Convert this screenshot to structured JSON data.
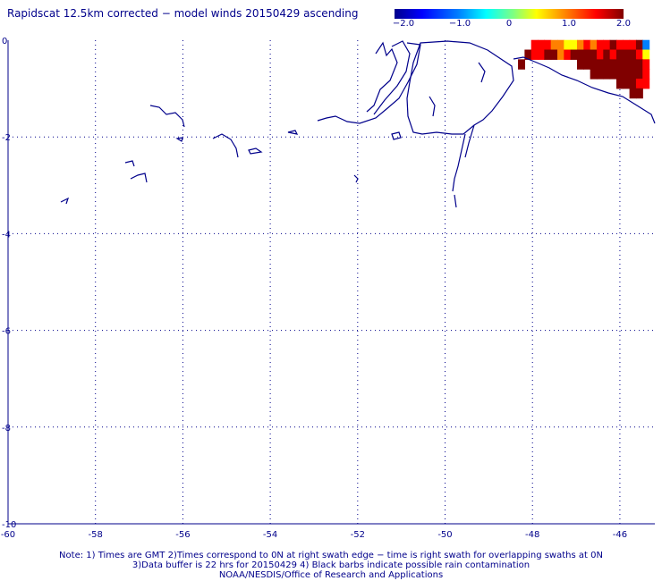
{
  "title": "Rapidscat 12.5km corrected − model winds 20150429 ascending",
  "colorbar": {
    "labels": [
      "−2.0",
      "−1.0",
      "0",
      "1.0",
      "2.0"
    ],
    "values": [
      -2.0,
      -1.0,
      0,
      1.0,
      2.0
    ],
    "colors": [
      "#0000a0",
      "#0000ff",
      "#0080ff",
      "#00ffff",
      "#80ff80",
      "#ffff00",
      "#ff8000",
      "#ff0000",
      "#800000"
    ]
  },
  "axes": {
    "x_ticks": [
      "-60",
      "-58",
      "-56",
      "-54",
      "-52",
      "-50",
      "-48",
      "-46"
    ],
    "x_values": [
      -60,
      -58,
      -56,
      -54,
      -52,
      -50,
      -48,
      -46
    ],
    "y_ticks": [
      "0",
      "-2",
      "-4",
      "-6",
      "-8",
      "-10"
    ],
    "y_values": [
      0,
      -2,
      -4,
      -6,
      -8,
      -10
    ],
    "xlim": [
      -60,
      -45.2
    ],
    "ylim": [
      -10,
      0
    ],
    "grid": true
  },
  "notes": [
    "Note: 1) Times are GMT 2)Times correspond to 0N at right swath edge − time is right swath for overlapping swaths at 0N",
    "3)Data buffer is 22 hrs for 20150429 4) Black barbs indicate possible rain contamination",
    "NOAA/NESDIS/Office of Research and Applications"
  ],
  "chart_data": {
    "type": "heatmap",
    "title": "Rapidscat 12.5km corrected − model winds 20150429 ascending",
    "xlim": [
      -60,
      -45.2
    ],
    "ylim": [
      -10,
      0
    ],
    "color_range": [
      -2.0,
      2.0
    ],
    "cells": [
      {
        "lon": -47.95,
        "lat": -0.1,
        "v": 1.6
      },
      {
        "lon": -47.8,
        "lat": -0.1,
        "v": 1.5
      },
      {
        "lon": -47.65,
        "lat": -0.1,
        "v": 1.3
      },
      {
        "lon": -47.5,
        "lat": -0.1,
        "v": 1.2
      },
      {
        "lon": -47.35,
        "lat": -0.1,
        "v": 0.8
      },
      {
        "lon": -47.2,
        "lat": -0.1,
        "v": 0.4
      },
      {
        "lon": -47.05,
        "lat": -0.1,
        "v": 0.6
      },
      {
        "lon": -46.9,
        "lat": -0.1,
        "v": 1.2
      },
      {
        "lon": -46.75,
        "lat": -0.1,
        "v": 1.4
      },
      {
        "lon": -46.6,
        "lat": -0.1,
        "v": 1.2
      },
      {
        "lon": -46.45,
        "lat": -0.1,
        "v": 1.4
      },
      {
        "lon": -46.3,
        "lat": -0.1,
        "v": 1.6
      },
      {
        "lon": -46.15,
        "lat": -0.1,
        "v": 1.8
      },
      {
        "lon": -46.0,
        "lat": -0.1,
        "v": 1.5
      },
      {
        "lon": -45.85,
        "lat": -0.1,
        "v": 1.3
      },
      {
        "lon": -45.7,
        "lat": -0.1,
        "v": 1.6
      },
      {
        "lon": -45.55,
        "lat": -0.1,
        "v": 1.9
      },
      {
        "lon": -45.4,
        "lat": -0.1,
        "v": -0.8
      },
      {
        "lon": -48.1,
        "lat": -0.3,
        "v": 2.0
      },
      {
        "lon": -47.95,
        "lat": -0.3,
        "v": 1.6
      },
      {
        "lon": -47.8,
        "lat": -0.3,
        "v": 1.7
      },
      {
        "lon": -47.65,
        "lat": -0.3,
        "v": 1.9
      },
      {
        "lon": -47.5,
        "lat": -0.3,
        "v": 1.8
      },
      {
        "lon": -47.35,
        "lat": -0.3,
        "v": 1.2
      },
      {
        "lon": -47.2,
        "lat": -0.3,
        "v": 1.6
      },
      {
        "lon": -47.05,
        "lat": -0.3,
        "v": 1.9
      },
      {
        "lon": -46.9,
        "lat": -0.3,
        "v": 2.0
      },
      {
        "lon": -46.75,
        "lat": -0.3,
        "v": 2.0
      },
      {
        "lon": -46.6,
        "lat": -0.3,
        "v": 1.9
      },
      {
        "lon": -46.45,
        "lat": -0.3,
        "v": 1.7
      },
      {
        "lon": -46.3,
        "lat": -0.3,
        "v": 2.0
      },
      {
        "lon": -46.15,
        "lat": -0.3,
        "v": 1.7
      },
      {
        "lon": -46.0,
        "lat": -0.3,
        "v": 1.9
      },
      {
        "lon": -45.85,
        "lat": -0.3,
        "v": 2.0
      },
      {
        "lon": -45.7,
        "lat": -0.3,
        "v": 2.0
      },
      {
        "lon": -45.55,
        "lat": -0.3,
        "v": 1.6
      },
      {
        "lon": -45.4,
        "lat": -0.3,
        "v": 0.6
      },
      {
        "lon": -48.25,
        "lat": -0.5,
        "v": 1.9
      },
      {
        "lon": -46.9,
        "lat": -0.5,
        "v": 2.0
      },
      {
        "lon": -46.75,
        "lat": -0.5,
        "v": 2.0
      },
      {
        "lon": -46.6,
        "lat": -0.5,
        "v": 1.9
      },
      {
        "lon": -46.45,
        "lat": -0.5,
        "v": 2.0
      },
      {
        "lon": -46.3,
        "lat": -0.5,
        "v": 1.9
      },
      {
        "lon": -46.15,
        "lat": -0.5,
        "v": 2.0
      },
      {
        "lon": -46.0,
        "lat": -0.5,
        "v": 2.0
      },
      {
        "lon": -45.85,
        "lat": -0.5,
        "v": 2.0
      },
      {
        "lon": -45.7,
        "lat": -0.5,
        "v": 2.0
      },
      {
        "lon": -45.55,
        "lat": -0.5,
        "v": 2.0
      },
      {
        "lon": -45.4,
        "lat": -0.5,
        "v": 1.4
      },
      {
        "lon": -46.6,
        "lat": -0.7,
        "v": 2.0
      },
      {
        "lon": -46.45,
        "lat": -0.7,
        "v": 2.0
      },
      {
        "lon": -46.3,
        "lat": -0.7,
        "v": 2.0
      },
      {
        "lon": -46.15,
        "lat": -0.7,
        "v": 1.9
      },
      {
        "lon": -46.0,
        "lat": -0.7,
        "v": 2.0
      },
      {
        "lon": -45.85,
        "lat": -0.7,
        "v": 2.0
      },
      {
        "lon": -45.7,
        "lat": -0.7,
        "v": 2.0
      },
      {
        "lon": -45.55,
        "lat": -0.7,
        "v": 2.0
      },
      {
        "lon": -45.4,
        "lat": -0.7,
        "v": 1.6
      },
      {
        "lon": -46.0,
        "lat": -0.9,
        "v": 2.0
      },
      {
        "lon": -45.85,
        "lat": -0.9,
        "v": 2.0
      },
      {
        "lon": -45.7,
        "lat": -0.9,
        "v": 1.8
      },
      {
        "lon": -45.55,
        "lat": -0.9,
        "v": 1.3
      },
      {
        "lon": -45.4,
        "lat": -0.9,
        "v": 1.5
      },
      {
        "lon": -45.7,
        "lat": -1.1,
        "v": 2.0
      },
      {
        "lon": -45.55,
        "lat": -1.1,
        "v": 2.0
      }
    ]
  }
}
